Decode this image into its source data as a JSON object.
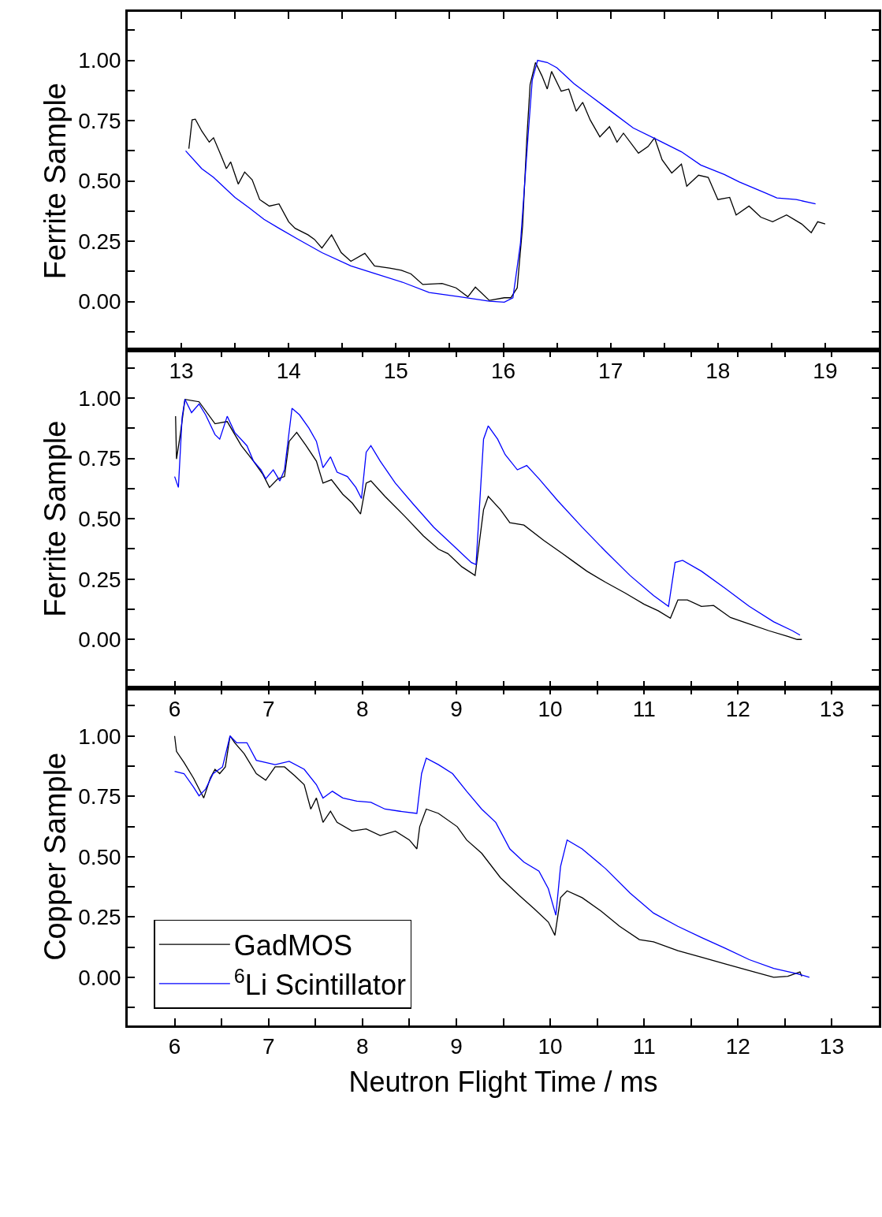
{
  "chart_data": [
    {
      "type": "line",
      "ylabel": "Ferrite Sample",
      "xlim": [
        12.5,
        19.5
      ],
      "ylim": [
        -0.2,
        1.2
      ],
      "xticks": [
        13,
        {
          "value": 13.5,
          "label": null
        },
        14,
        {
          "value": 14.5,
          "label": null
        },
        15,
        {
          "value": 15.5,
          "label": null
        },
        16,
        {
          "value": 16.5,
          "label": null
        },
        17,
        {
          "value": 17.5,
          "label": null
        },
        18,
        {
          "value": 18.5,
          "label": null
        },
        19
      ],
      "yticks": [
        {
          "value": -0.125,
          "label": null
        },
        {
          "value": 0,
          "label": "0.00"
        },
        {
          "value": 0.125,
          "label": null
        },
        {
          "value": 0.25,
          "label": "0.25"
        },
        {
          "value": 0.375,
          "label": null
        },
        {
          "value": 0.5,
          "label": "0.50"
        },
        {
          "value": 0.625,
          "label": null
        },
        {
          "value": 0.75,
          "label": "0.75"
        },
        {
          "value": 0.875,
          "label": null
        },
        {
          "value": 1,
          "label": "1.00"
        },
        {
          "value": 1.125,
          "label": null
        }
      ],
      "grid": false,
      "marker": "none",
      "line_style": "solid",
      "legend": false,
      "series": [
        {
          "color": "#000000",
          "x": [
            13.07,
            13.1,
            13.13,
            13.19,
            13.26,
            13.3,
            13.37,
            13.42,
            13.46,
            13.53,
            13.59,
            13.66,
            13.73,
            13.82,
            13.91,
            14.0,
            14.06,
            14.18,
            14.24,
            14.31,
            14.4,
            14.49,
            14.58,
            14.71,
            14.8,
            14.94,
            15.05,
            15.14,
            15.25,
            15.43,
            15.56,
            15.67,
            15.74,
            15.87,
            16.01,
            16.07,
            16.13,
            16.18,
            16.22,
            16.25,
            16.3,
            16.36,
            16.41,
            16.45,
            16.54,
            16.61,
            16.68,
            16.74,
            16.81,
            16.9,
            16.99,
            17.06,
            17.12,
            17.26,
            17.35,
            17.41,
            17.48,
            17.57,
            17.66,
            17.71,
            17.82,
            17.91,
            18.0,
            18.11,
            18.17,
            18.29,
            18.4,
            18.51,
            18.64,
            18.78,
            18.87,
            18.93,
            19.0
          ],
          "values": [
            0.634,
            0.753,
            0.756,
            0.707,
            0.661,
            0.679,
            0.606,
            0.551,
            0.579,
            0.487,
            0.537,
            0.505,
            0.423,
            0.396,
            0.405,
            0.331,
            0.304,
            0.277,
            0.258,
            0.222,
            0.277,
            0.203,
            0.167,
            0.2,
            0.148,
            0.139,
            0.13,
            0.115,
            0.071,
            0.075,
            0.057,
            0.02,
            0.06,
            0.005,
            0.016,
            0.016,
            0.057,
            0.313,
            0.68,
            0.899,
            0.991,
            0.936,
            0.881,
            0.954,
            0.872,
            0.881,
            0.789,
            0.826,
            0.753,
            0.683,
            0.725,
            0.661,
            0.698,
            0.615,
            0.643,
            0.679,
            0.588,
            0.533,
            0.57,
            0.478,
            0.524,
            0.515,
            0.423,
            0.432,
            0.359,
            0.396,
            0.35,
            0.331,
            0.359,
            0.322,
            0.286,
            0.331,
            0.322
          ]
        },
        {
          "color": "#0000ff",
          "x": [
            13.04,
            13.19,
            13.3,
            13.5,
            13.64,
            13.77,
            13.91,
            14.09,
            14.31,
            14.58,
            14.8,
            15.07,
            15.31,
            15.6,
            15.87,
            16.01,
            16.09,
            16.16,
            16.23,
            16.27,
            16.32,
            16.41,
            16.5,
            16.66,
            16.81,
            17.03,
            17.21,
            17.44,
            17.66,
            17.84,
            18.06,
            18.2,
            18.44,
            18.55,
            18.73,
            18.91
          ],
          "values": [
            0.625,
            0.551,
            0.515,
            0.432,
            0.386,
            0.341,
            0.304,
            0.258,
            0.203,
            0.148,
            0.117,
            0.079,
            0.038,
            0.02,
            0.002,
            -0.002,
            0.016,
            0.24,
            0.68,
            0.918,
            1.0,
            0.991,
            0.969,
            0.903,
            0.853,
            0.78,
            0.72,
            0.67,
            0.621,
            0.566,
            0.527,
            0.496,
            0.451,
            0.43,
            0.423,
            0.405
          ]
        }
      ]
    },
    {
      "type": "line",
      "ylabel": "Ferrite Sample",
      "xlim": [
        5.5,
        13.5
      ],
      "ylim": [
        -0.2,
        1.2
      ],
      "xticks": [
        6,
        {
          "value": 6.5,
          "label": null
        },
        7,
        {
          "value": 7.5,
          "label": null
        },
        8,
        {
          "value": 8.5,
          "label": null
        },
        9,
        {
          "value": 9.5,
          "label": null
        },
        10,
        {
          "value": 10.5,
          "label": null
        },
        11,
        {
          "value": 11.5,
          "label": null
        },
        12,
        {
          "value": 12.5,
          "label": null
        },
        13
      ],
      "yticks": [
        {
          "value": -0.125,
          "label": null
        },
        {
          "value": 0,
          "label": "0.00"
        },
        {
          "value": 0.125,
          "label": null
        },
        {
          "value": 0.25,
          "label": "0.25"
        },
        {
          "value": 0.375,
          "label": null
        },
        {
          "value": 0.5,
          "label": "0.50"
        },
        {
          "value": 0.625,
          "label": null
        },
        {
          "value": 0.75,
          "label": "0.75"
        },
        {
          "value": 0.875,
          "label": null
        },
        {
          "value": 1,
          "label": "1.00"
        },
        {
          "value": 1.125,
          "label": null
        }
      ],
      "grid": false,
      "marker": "none",
      "line_style": "solid",
      "legend": false,
      "series": [
        {
          "color": "#000000",
          "x": [
            6.01,
            6.02,
            6.06,
            6.11,
            6.26,
            6.43,
            6.56,
            6.71,
            6.84,
            6.94,
            7.01,
            7.1,
            7.17,
            7.22,
            7.3,
            7.4,
            7.51,
            7.58,
            7.67,
            7.79,
            7.89,
            7.98,
            8.04,
            8.09,
            8.24,
            8.45,
            8.65,
            8.81,
            8.91,
            9.06,
            9.2,
            9.29,
            9.34,
            9.47,
            9.57,
            9.72,
            9.93,
            10.13,
            10.23,
            10.39,
            10.59,
            10.8,
            11.0,
            11.15,
            11.28,
            11.36,
            11.46,
            11.61,
            11.74,
            11.92,
            12.12,
            12.33,
            12.53,
            12.63,
            12.68
          ],
          "values": [
            0.925,
            0.748,
            0.849,
            0.995,
            0.985,
            0.894,
            0.903,
            0.803,
            0.739,
            0.684,
            0.63,
            0.666,
            0.675,
            0.821,
            0.858,
            0.803,
            0.739,
            0.648,
            0.662,
            0.602,
            0.566,
            0.52,
            0.648,
            0.657,
            0.593,
            0.511,
            0.429,
            0.374,
            0.356,
            0.301,
            0.265,
            0.538,
            0.593,
            0.538,
            0.484,
            0.474,
            0.411,
            0.356,
            0.328,
            0.283,
            0.237,
            0.192,
            0.146,
            0.119,
            0.088,
            0.164,
            0.164,
            0.137,
            0.141,
            0.091,
            0.064,
            0.036,
            0.013,
            0.0,
            0.0
          ]
        },
        {
          "color": "#0000ff",
          "x": [
            6.0,
            6.04,
            6.08,
            6.11,
            6.18,
            6.26,
            6.33,
            6.43,
            6.48,
            6.56,
            6.64,
            6.77,
            6.84,
            6.92,
            6.97,
            7.05,
            7.12,
            7.17,
            7.25,
            7.33,
            7.43,
            7.51,
            7.58,
            7.66,
            7.73,
            7.84,
            7.93,
            7.99,
            8.04,
            8.09,
            8.19,
            8.35,
            8.55,
            8.76,
            8.96,
            9.16,
            9.21,
            9.29,
            9.34,
            9.44,
            9.52,
            9.65,
            9.75,
            9.88,
            10.08,
            10.34,
            10.59,
            10.85,
            11.1,
            11.26,
            11.33,
            11.41,
            11.61,
            11.87,
            12.12,
            12.38,
            12.58,
            12.66
          ],
          "values": [
            0.675,
            0.63,
            0.922,
            0.995,
            0.94,
            0.976,
            0.931,
            0.849,
            0.83,
            0.925,
            0.858,
            0.803,
            0.739,
            0.703,
            0.666,
            0.703,
            0.657,
            0.703,
            0.958,
            0.931,
            0.876,
            0.821,
            0.712,
            0.757,
            0.693,
            0.675,
            0.63,
            0.584,
            0.776,
            0.803,
            0.739,
            0.648,
            0.557,
            0.465,
            0.392,
            0.319,
            0.31,
            0.83,
            0.885,
            0.83,
            0.766,
            0.703,
            0.721,
            0.666,
            0.575,
            0.465,
            0.365,
            0.265,
            0.182,
            0.137,
            0.319,
            0.328,
            0.283,
            0.21,
            0.137,
            0.073,
            0.036,
            0.018
          ]
        }
      ]
    },
    {
      "type": "line",
      "ylabel": "Copper Sample",
      "xlabel": "Neutron Flight Time / ms",
      "xlim": [
        5.5,
        13.5
      ],
      "ylim": [
        -0.2,
        1.2
      ],
      "xticks": [
        6,
        {
          "value": 6.5,
          "label": null
        },
        7,
        {
          "value": 7.5,
          "label": null
        },
        8,
        {
          "value": 8.5,
          "label": null
        },
        9,
        {
          "value": 9.5,
          "label": null
        },
        10,
        {
          "value": 10.5,
          "label": null
        },
        11,
        {
          "value": 11.5,
          "label": null
        },
        12,
        {
          "value": 12.5,
          "label": null
        },
        13
      ],
      "yticks": [
        {
          "value": -0.125,
          "label": null
        },
        {
          "value": 0,
          "label": "0.00"
        },
        {
          "value": 0.125,
          "label": null
        },
        {
          "value": 0.25,
          "label": "0.25"
        },
        {
          "value": 0.375,
          "label": null
        },
        {
          "value": 0.5,
          "label": "0.50"
        },
        {
          "value": 0.625,
          "label": null
        },
        {
          "value": 0.75,
          "label": "0.75"
        },
        {
          "value": 0.875,
          "label": null
        },
        {
          "value": 1,
          "label": "1.00"
        },
        {
          "value": 1.125,
          "label": null
        }
      ],
      "grid": false,
      "marker": "none",
      "line_style": "solid",
      "legend": "bottom left",
      "series": [
        {
          "name": "GadMOS",
          "color": "#000000",
          "x": [
            6.0,
            6.02,
            6.1,
            6.2,
            6.31,
            6.38,
            6.43,
            6.48,
            6.54,
            6.59,
            6.64,
            6.74,
            6.87,
            6.97,
            7.07,
            7.17,
            7.28,
            7.38,
            7.45,
            7.51,
            7.58,
            7.66,
            7.73,
            7.89,
            8.04,
            8.19,
            8.35,
            8.5,
            8.58,
            8.61,
            8.68,
            8.81,
            9.01,
            9.11,
            9.27,
            9.47,
            9.67,
            9.83,
            9.98,
            10.05,
            10.11,
            10.18,
            10.34,
            10.54,
            10.74,
            10.95,
            11.1,
            11.36,
            11.61,
            11.87,
            12.12,
            12.38,
            12.53,
            12.66,
            12.68
          ],
          "values": [
            1.0,
            0.936,
            0.89,
            0.826,
            0.743,
            0.826,
            0.862,
            0.844,
            0.872,
            1.0,
            0.972,
            0.927,
            0.844,
            0.817,
            0.872,
            0.872,
            0.835,
            0.798,
            0.697,
            0.743,
            0.642,
            0.688,
            0.642,
            0.606,
            0.615,
            0.587,
            0.606,
            0.569,
            0.532,
            0.624,
            0.697,
            0.679,
            0.624,
            0.569,
            0.514,
            0.413,
            0.339,
            0.284,
            0.229,
            0.174,
            0.33,
            0.358,
            0.33,
            0.275,
            0.211,
            0.156,
            0.147,
            0.11,
            0.083,
            0.055,
            0.028,
            0.0,
            0.004,
            0.022,
            0.004
          ]
        },
        {
          "name": "$^{6}$Li Scintillator",
          "color": "#0000ff",
          "x": [
            6.0,
            6.1,
            6.2,
            6.26,
            6.33,
            6.41,
            6.51,
            6.59,
            6.66,
            6.77,
            6.87,
            6.97,
            7.07,
            7.22,
            7.38,
            7.51,
            7.58,
            7.68,
            7.79,
            7.94,
            8.09,
            8.24,
            8.4,
            8.58,
            8.63,
            8.68,
            8.81,
            8.96,
            9.11,
            9.27,
            9.42,
            9.57,
            9.72,
            9.88,
            9.98,
            10.06,
            10.11,
            10.18,
            10.34,
            10.59,
            10.85,
            11.1,
            11.36,
            11.61,
            11.87,
            12.12,
            12.38,
            12.63,
            12.76
          ],
          "values": [
            0.853,
            0.844,
            0.789,
            0.752,
            0.78,
            0.844,
            0.872,
            1.0,
            0.972,
            0.972,
            0.899,
            0.89,
            0.881,
            0.895,
            0.862,
            0.798,
            0.743,
            0.771,
            0.743,
            0.73,
            0.725,
            0.697,
            0.688,
            0.679,
            0.844,
            0.908,
            0.881,
            0.844,
            0.771,
            0.697,
            0.642,
            0.532,
            0.477,
            0.44,
            0.367,
            0.257,
            0.459,
            0.569,
            0.532,
            0.45,
            0.349,
            0.266,
            0.211,
            0.165,
            0.119,
            0.073,
            0.037,
            0.015,
            0.0
          ]
        }
      ]
    }
  ]
}
